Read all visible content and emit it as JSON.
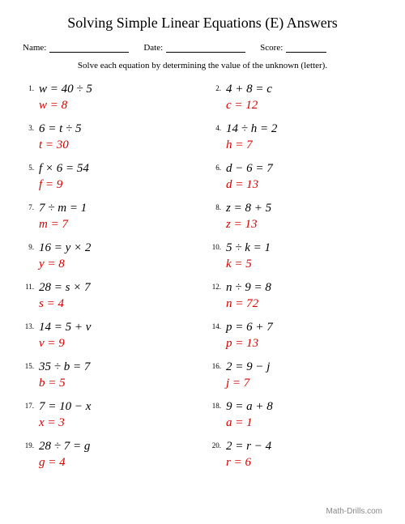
{
  "title": "Solving Simple Linear Equations (E) Answers",
  "header": {
    "name_label": "Name:",
    "date_label": "Date:",
    "score_label": "Score:"
  },
  "instructions": "Solve each equation by determining the value of the unknown (letter).",
  "answer_color": "#d40000",
  "text_color": "#000000",
  "background_color": "#ffffff",
  "problems": [
    {
      "n": "1.",
      "eq": "w = 40 ÷ 5",
      "ans": "w = 8"
    },
    {
      "n": "2.",
      "eq": "4 + 8 = c",
      "ans": "c = 12"
    },
    {
      "n": "3.",
      "eq": "6 = t ÷ 5",
      "ans": "t = 30"
    },
    {
      "n": "4.",
      "eq": "14 ÷ h = 2",
      "ans": "h = 7"
    },
    {
      "n": "5.",
      "eq": "f × 6 = 54",
      "ans": "f = 9"
    },
    {
      "n": "6.",
      "eq": "d − 6 = 7",
      "ans": "d = 13"
    },
    {
      "n": "7.",
      "eq": "7 ÷ m = 1",
      "ans": "m = 7"
    },
    {
      "n": "8.",
      "eq": "z = 8 + 5",
      "ans": "z = 13"
    },
    {
      "n": "9.",
      "eq": "16 = y × 2",
      "ans": "y = 8"
    },
    {
      "n": "10.",
      "eq": "5 ÷ k = 1",
      "ans": "k = 5"
    },
    {
      "n": "11.",
      "eq": "28 = s × 7",
      "ans": "s = 4"
    },
    {
      "n": "12.",
      "eq": "n ÷ 9 = 8",
      "ans": "n = 72"
    },
    {
      "n": "13.",
      "eq": "14 = 5 + v",
      "ans": "v = 9"
    },
    {
      "n": "14.",
      "eq": "p = 6 + 7",
      "ans": "p = 13"
    },
    {
      "n": "15.",
      "eq": "35 ÷ b = 7",
      "ans": "b = 5"
    },
    {
      "n": "16.",
      "eq": "2 = 9 − j",
      "ans": "j = 7"
    },
    {
      "n": "17.",
      "eq": "7 = 10 − x",
      "ans": "x = 3"
    },
    {
      "n": "18.",
      "eq": "9 = a + 8",
      "ans": "a = 1"
    },
    {
      "n": "19.",
      "eq": "28 ÷ 7 = g",
      "ans": "g = 4"
    },
    {
      "n": "20.",
      "eq": "2 = r − 4",
      "ans": "r = 6"
    }
  ],
  "footer": "Math-Drills.com"
}
